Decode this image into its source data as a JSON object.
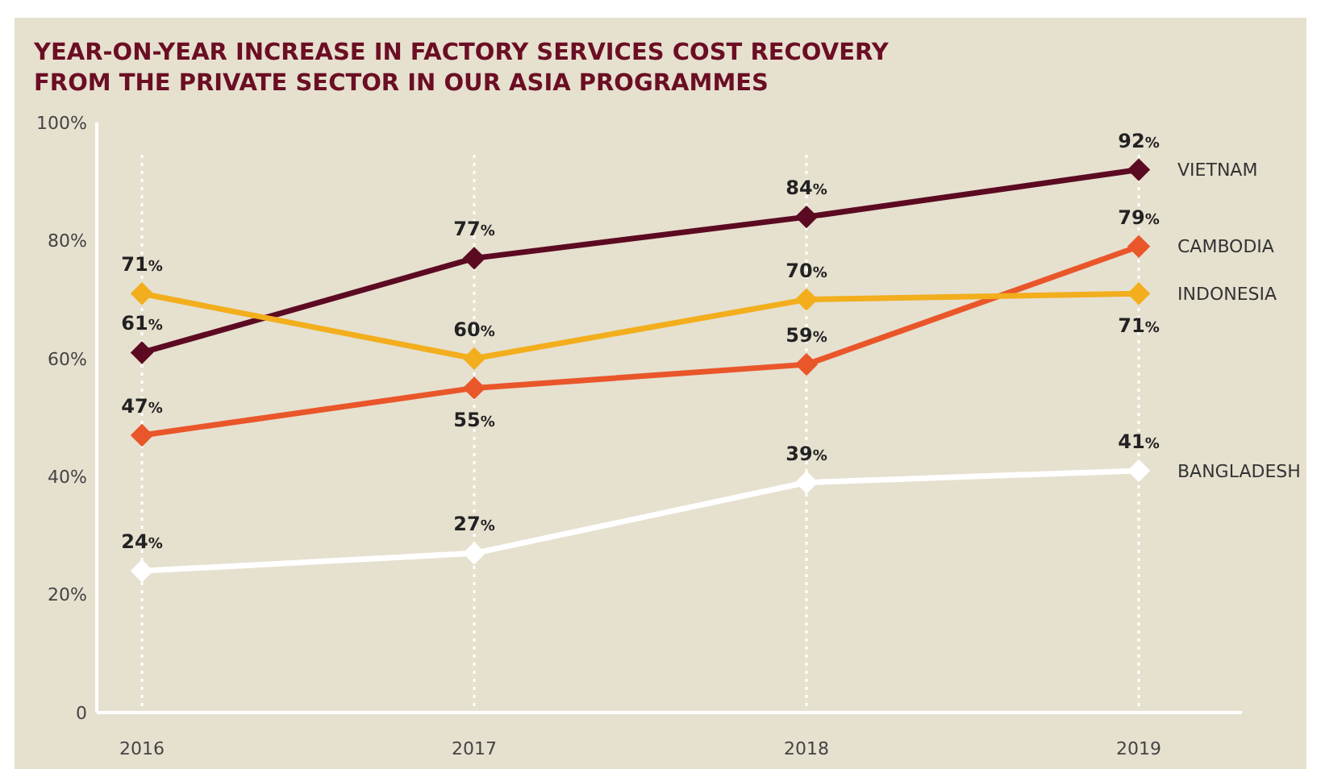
{
  "chart_data": {
    "type": "line",
    "title": "YEAR-ON-YEAR INCREASE IN FACTORY SERVICES COST RECOVERY\nFROM THE PRIVATE SECTOR IN OUR ASIA PROGRAMMES",
    "categories": [
      "2016",
      "2017",
      "2018",
      "2019"
    ],
    "series": [
      {
        "name": "VIETNAM",
        "color": "#5c0a22",
        "values": [
          61,
          77,
          84,
          92
        ],
        "value_labels": [
          "61%",
          "77%",
          "84%",
          "92%"
        ]
      },
      {
        "name": "CAMBODIA",
        "color": "#e9562a",
        "values": [
          47,
          55,
          59,
          79
        ],
        "value_labels": [
          "47%",
          "55%",
          "59%",
          "79%"
        ]
      },
      {
        "name": "INDONESIA",
        "color": "#f2ae1c",
        "values": [
          71,
          60,
          70,
          71
        ],
        "value_labels": [
          "71%",
          "60%",
          "70%",
          "71%"
        ]
      },
      {
        "name": "BANGLADESH",
        "color": "#ffffff",
        "values": [
          24,
          27,
          39,
          41
        ],
        "value_labels": [
          "24%",
          "27%",
          "39%",
          "41%"
        ]
      }
    ],
    "ylim": [
      0,
      100
    ],
    "yticks": [
      0,
      {
        "value": 20,
        "label": "20%"
      },
      {
        "value": 40,
        "label": "40%"
      },
      {
        "value": 60,
        "label": "60%"
      },
      {
        "value": 80,
        "label": "80%"
      },
      {
        "value": 100,
        "label": "100%"
      }
    ],
    "grid": "x",
    "legend": "right",
    "marker": "diamond",
    "line_style": "solid"
  }
}
